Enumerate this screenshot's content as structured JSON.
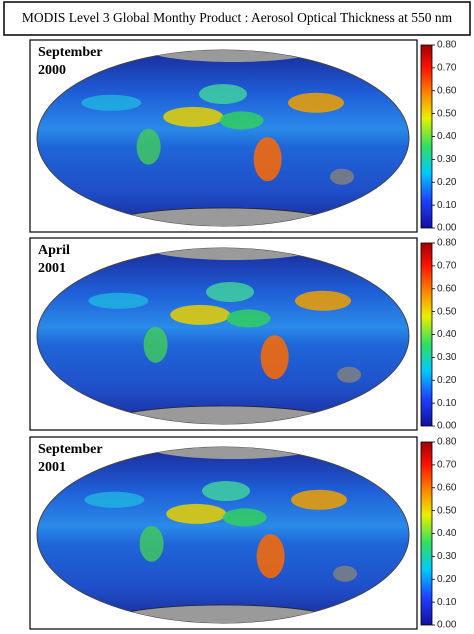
{
  "title": "MODIS Level 3 Global Monthy Product : Aerosol Optical Thickness at 550 nm",
  "colorbar": {
    "lim": [
      0,
      0.8
    ],
    "ticks": [
      {
        "value": 0,
        "label": "0.00"
      },
      {
        "value": 0.1,
        "label": "0.10"
      },
      {
        "value": 0.2,
        "label": "0.20"
      },
      {
        "value": 0.3,
        "label": "0.30"
      },
      {
        "value": 0.4,
        "label": "0.40"
      },
      {
        "value": 0.5,
        "label": "0.50"
      },
      {
        "value": 0.6,
        "label": "0.60"
      },
      {
        "value": 0.7,
        "label": "0.70"
      },
      {
        "value": 0.8,
        "label": "0.80"
      }
    ]
  },
  "panels": [
    {
      "label": [
        "September",
        "2000"
      ]
    },
    {
      "label": [
        "April",
        "2001"
      ]
    },
    {
      "label": [
        "September",
        "2001"
      ]
    }
  ]
}
